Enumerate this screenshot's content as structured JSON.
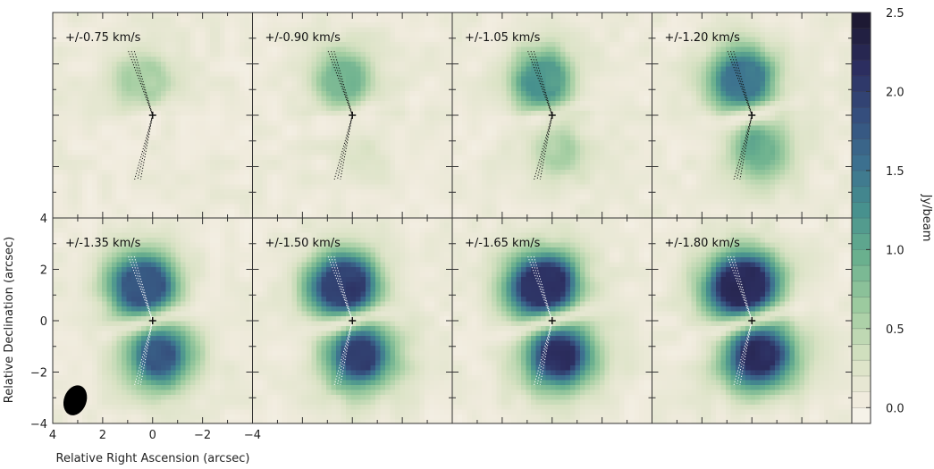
{
  "chart_data": {
    "type": "heatmap",
    "description_note": "",
    "xlabel": "Relative Right Ascension (arcsec)",
    "ylabel": "Relative Declination (arcsec)",
    "xlim": [
      4,
      -4
    ],
    "ylim": [
      -4,
      4
    ],
    "x_ticks": [
      4,
      2,
      0,
      -2,
      -4
    ],
    "x_tick_labels": [
      "4",
      "2",
      "0",
      "−2",
      "−4"
    ],
    "y_ticks": [
      4,
      2,
      0,
      -2,
      -4
    ],
    "y_tick_labels": [
      "4",
      "2",
      "0",
      "−2",
      "−4"
    ],
    "colorbar": {
      "label": "Jy/beam",
      "range": [
        -0.1,
        2.5
      ],
      "ticks": [
        2.5,
        2.0,
        1.5,
        1.0,
        0.5,
        0.0
      ],
      "tick_labels": [
        "2.5",
        "2.0",
        "1.5",
        "1.0",
        "0.5",
        "0.0"
      ]
    },
    "colors": {
      "low": "#f7f3ea",
      "background": "#f0ebdd",
      "mid": "#8cc08f",
      "high": "#3b6b8c",
      "top": "#1c1830"
    },
    "panels": [
      {
        "label": "+/-0.75 km/s",
        "peak": 0.45
      },
      {
        "label": "+/-0.90 km/s",
        "peak": 0.7
      },
      {
        "label": "+/-1.05 km/s",
        "peak": 1.0
      },
      {
        "label": "+/-1.20 km/s",
        "peak": 1.3
      },
      {
        "label": "+/-1.35 km/s",
        "peak": 1.55
      },
      {
        "label": "+/-1.50 km/s",
        "peak": 1.75
      },
      {
        "label": "+/-1.65 km/s",
        "peak": 1.85
      },
      {
        "label": "+/-1.80 km/s",
        "peak": 1.9
      }
    ],
    "beam": {
      "major_arcsec": 0.6,
      "minor_arcsec": 0.45,
      "pa_deg": 20,
      "center": [
        3.1,
        -3.1
      ]
    }
  }
}
